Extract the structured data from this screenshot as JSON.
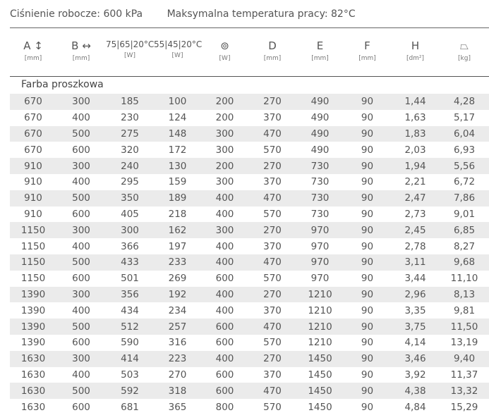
{
  "info": {
    "pressure": "Ciśnienie robocze: 600 kPa",
    "temperature": "Maksymalna temperatura pracy: 82°C"
  },
  "columns": [
    {
      "label": "A ↕",
      "unit": "[mm]"
    },
    {
      "label": "B ↔",
      "unit": "[mm]"
    },
    {
      "label": "75|65|20°C",
      "unit": "[W]"
    },
    {
      "label": "55|45|20°C",
      "unit": "[W]"
    },
    {
      "label": "⊚",
      "unit": "[W]",
      "icon": "electric-socket-icon"
    },
    {
      "label": "D",
      "unit": "[mm]"
    },
    {
      "label": "E",
      "unit": "[mm]"
    },
    {
      "label": "F",
      "unit": "[mm]"
    },
    {
      "label": "H",
      "unit": "[dm²]",
      "icon": "radiator-capacity-icon"
    },
    {
      "label": "⏢",
      "unit": "[kg]",
      "icon": "weight-icon"
    }
  ],
  "group": "Farba proszkowa",
  "rows": [
    [
      "670",
      "300",
      "185",
      "100",
      "200",
      "270",
      "490",
      "90",
      "1,44",
      "4,28"
    ],
    [
      "670",
      "400",
      "230",
      "124",
      "200",
      "370",
      "490",
      "90",
      "1,63",
      "5,17"
    ],
    [
      "670",
      "500",
      "275",
      "148",
      "300",
      "470",
      "490",
      "90",
      "1,83",
      "6,04"
    ],
    [
      "670",
      "600",
      "320",
      "172",
      "300",
      "570",
      "490",
      "90",
      "2,03",
      "6,93"
    ],
    [
      "910",
      "300",
      "240",
      "130",
      "200",
      "270",
      "730",
      "90",
      "1,94",
      "5,56"
    ],
    [
      "910",
      "400",
      "295",
      "159",
      "300",
      "370",
      "730",
      "90",
      "2,21",
      "6,72"
    ],
    [
      "910",
      "500",
      "350",
      "189",
      "400",
      "470",
      "730",
      "90",
      "2,47",
      "7,86"
    ],
    [
      "910",
      "600",
      "405",
      "218",
      "400",
      "570",
      "730",
      "90",
      "2,73",
      "9,01"
    ],
    [
      "1150",
      "300",
      "300",
      "162",
      "300",
      "270",
      "970",
      "90",
      "2,45",
      "6,85"
    ],
    [
      "1150",
      "400",
      "366",
      "197",
      "400",
      "370",
      "970",
      "90",
      "2,78",
      "8,27"
    ],
    [
      "1150",
      "500",
      "433",
      "233",
      "400",
      "470",
      "970",
      "90",
      "3,11",
      "9,68"
    ],
    [
      "1150",
      "600",
      "501",
      "269",
      "600",
      "570",
      "970",
      "90",
      "3,44",
      "11,10"
    ],
    [
      "1390",
      "300",
      "356",
      "192",
      "400",
      "270",
      "1210",
      "90",
      "2,96",
      "8,13"
    ],
    [
      "1390",
      "400",
      "434",
      "234",
      "400",
      "370",
      "1210",
      "90",
      "3,35",
      "9,81"
    ],
    [
      "1390",
      "500",
      "512",
      "257",
      "600",
      "470",
      "1210",
      "90",
      "3,75",
      "11,50"
    ],
    [
      "1390",
      "600",
      "590",
      "316",
      "600",
      "570",
      "1210",
      "90",
      "4,14",
      "13,19"
    ],
    [
      "1630",
      "300",
      "414",
      "223",
      "400",
      "270",
      "1450",
      "90",
      "3,46",
      "9,40"
    ],
    [
      "1630",
      "400",
      "503",
      "270",
      "600",
      "370",
      "1450",
      "90",
      "3,92",
      "11,37"
    ],
    [
      "1630",
      "500",
      "592",
      "318",
      "600",
      "470",
      "1450",
      "90",
      "4,38",
      "13,32"
    ],
    [
      "1630",
      "600",
      "681",
      "365",
      "800",
      "570",
      "1450",
      "90",
      "4,84",
      "15,29"
    ]
  ]
}
